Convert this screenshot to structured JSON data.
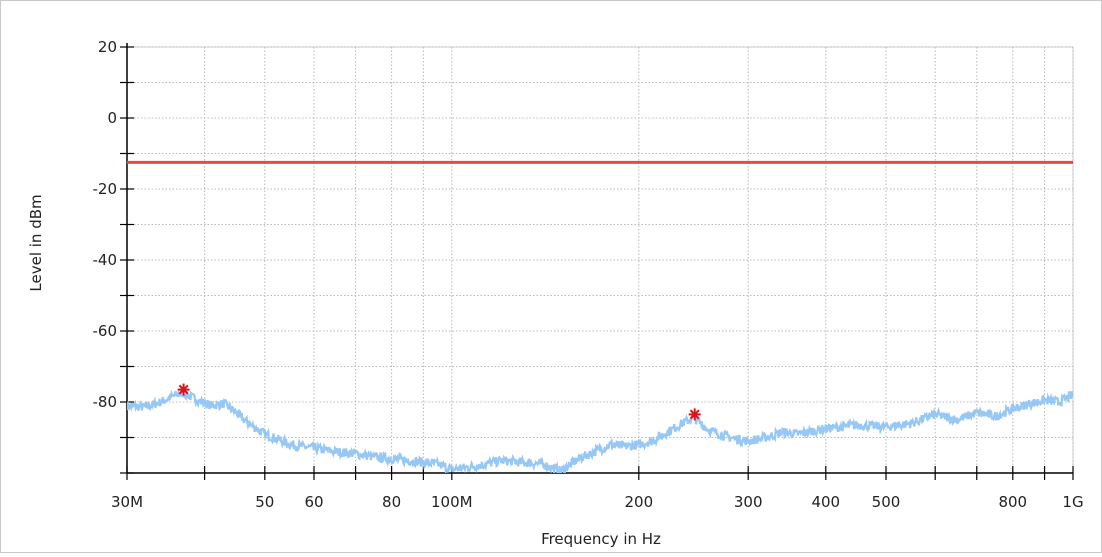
{
  "chart_data": {
    "type": "line",
    "xlabel": "Frequency in Hz",
    "ylabel": "Level in dBm",
    "x_scale": "log",
    "xlim": [
      30000000,
      1000000000
    ],
    "ylim": [
      -100,
      20
    ],
    "grid": true,
    "x_ticks": [
      {
        "value": 30000000,
        "label": "30M"
      },
      {
        "value": 50000000,
        "label": "50"
      },
      {
        "value": 60000000,
        "label": "60"
      },
      {
        "value": 80000000,
        "label": "80"
      },
      {
        "value": 100000000,
        "label": "100M"
      },
      {
        "value": 200000000,
        "label": "200"
      },
      {
        "value": 300000000,
        "label": "300"
      },
      {
        "value": 400000000,
        "label": "400"
      },
      {
        "value": 500000000,
        "label": "500"
      },
      {
        "value": 800000000,
        "label": "800"
      },
      {
        "value": 1000000000,
        "label": "1G"
      }
    ],
    "x_minor_ticks": [
      40000000,
      70000000,
      90000000,
      600000000,
      700000000,
      900000000
    ],
    "y_ticks": [
      {
        "value": 20,
        "label": "20"
      },
      {
        "value": 0,
        "label": "0"
      },
      {
        "value": -20,
        "label": "-20"
      },
      {
        "value": -40,
        "label": "-40"
      },
      {
        "value": -60,
        "label": "-60"
      },
      {
        "value": -80,
        "label": "-80"
      }
    ],
    "y_minor_ticks": [
      10,
      -10,
      -30,
      -50,
      -70,
      -90
    ],
    "limit_line": {
      "value": -12.5,
      "color": "#e8474b"
    },
    "series": [
      {
        "color": "#97c8f5",
        "points": [
          [
            30000000,
            -81
          ],
          [
            32000000,
            -81.5
          ],
          [
            34000000,
            -80
          ],
          [
            36000000,
            -78
          ],
          [
            37000000,
            -77.5
          ],
          [
            39000000,
            -79.5
          ],
          [
            41000000,
            -81
          ],
          [
            43000000,
            -80.5
          ],
          [
            45000000,
            -83
          ],
          [
            47000000,
            -86
          ],
          [
            50000000,
            -89
          ],
          [
            55000000,
            -92
          ],
          [
            60000000,
            -93
          ],
          [
            65000000,
            -94
          ],
          [
            70000000,
            -94.5
          ],
          [
            75000000,
            -95.5
          ],
          [
            80000000,
            -96
          ],
          [
            85000000,
            -96.5
          ],
          [
            90000000,
            -97
          ],
          [
            95000000,
            -97.5
          ],
          [
            100000000,
            -99
          ],
          [
            110000000,
            -98
          ],
          [
            120000000,
            -96.5
          ],
          [
            130000000,
            -97
          ],
          [
            140000000,
            -97.5
          ],
          [
            150000000,
            -99.5
          ],
          [
            160000000,
            -96
          ],
          [
            170000000,
            -94
          ],
          [
            180000000,
            -92
          ],
          [
            190000000,
            -92.5
          ],
          [
            200000000,
            -92
          ],
          [
            210000000,
            -91
          ],
          [
            220000000,
            -89
          ],
          [
            235000000,
            -86
          ],
          [
            245000000,
            -84.5
          ],
          [
            260000000,
            -88
          ],
          [
            280000000,
            -90
          ],
          [
            300000000,
            -91
          ],
          [
            320000000,
            -90
          ],
          [
            340000000,
            -88.5
          ],
          [
            360000000,
            -89
          ],
          [
            400000000,
            -87.5
          ],
          [
            450000000,
            -86.5
          ],
          [
            500000000,
            -87
          ],
          [
            550000000,
            -86
          ],
          [
            600000000,
            -83.5
          ],
          [
            650000000,
            -85
          ],
          [
            700000000,
            -83
          ],
          [
            750000000,
            -84
          ],
          [
            800000000,
            -82
          ],
          [
            850000000,
            -80.5
          ],
          [
            900000000,
            -79.5
          ],
          [
            950000000,
            -80
          ],
          [
            1000000000,
            -78
          ]
        ]
      }
    ],
    "markers": [
      {
        "x": 37000000,
        "y": -76.5,
        "color": "#e0101a",
        "symbol": "star"
      },
      {
        "x": 246000000,
        "y": -83.5,
        "color": "#e0101a",
        "symbol": "star"
      }
    ]
  }
}
